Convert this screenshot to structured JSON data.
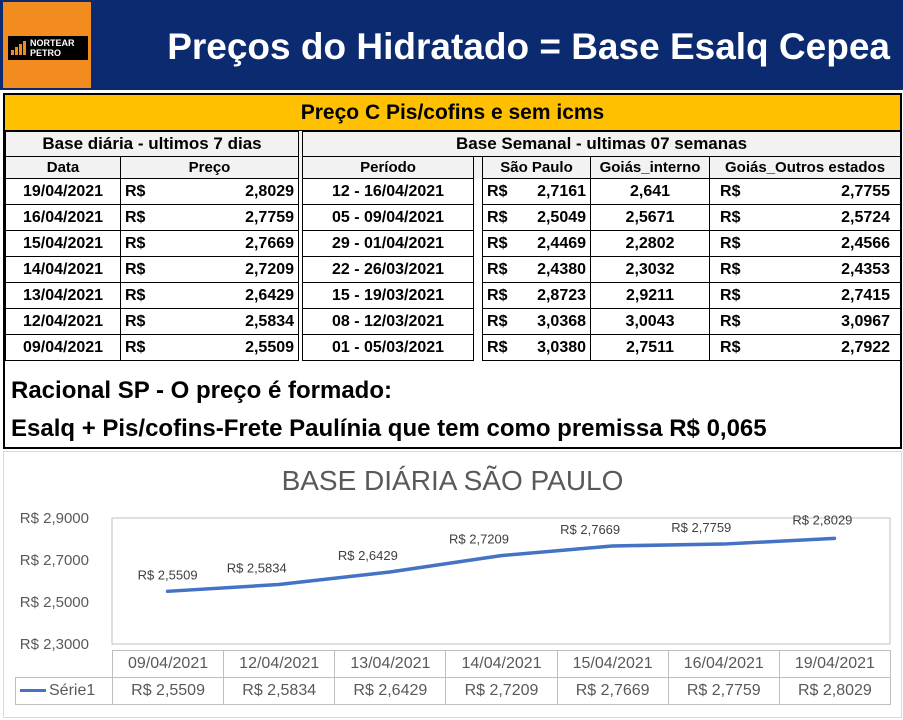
{
  "header": {
    "logo_text_line1": "NORTEAR",
    "logo_text_line2": "PETRO",
    "title": "Preços do Hidratado = Base Esalq Cepea"
  },
  "table": {
    "subtitle": "Preço C Pis/cofins e sem icms",
    "daily_header": "Base diária - ultimos 7 dias",
    "weekly_header": "Base Semanal - ultimas 07 semanas",
    "columns": {
      "data": "Data",
      "preco": "Preço",
      "periodo": "Período",
      "sao_paulo": "São Paulo",
      "goias_interno": "Goiás_interno",
      "goias_outros": "Goiás_Outros estados"
    },
    "currency": "R$",
    "rows": [
      {
        "data": "19/04/2021",
        "preco": "2,8029",
        "periodo": "12 - 16/04/2021",
        "sp": "2,7161",
        "gi": "2,641",
        "go": "2,7755"
      },
      {
        "data": "16/04/2021",
        "preco": "2,7759",
        "periodo": "05 - 09/04/2021",
        "sp": "2,5049",
        "gi": "2,5671",
        "go": "2,5724"
      },
      {
        "data": "15/04/2021",
        "preco": "2,7669",
        "periodo": "29 - 01/04/2021",
        "sp": "2,4469",
        "gi": "2,2802",
        "go": "2,4566"
      },
      {
        "data": "14/04/2021",
        "preco": "2,7209",
        "periodo": "22 - 26/03/2021",
        "sp": "2,4380",
        "gi": "2,3032",
        "go": "2,4353"
      },
      {
        "data": "13/04/2021",
        "preco": "2,6429",
        "periodo": "15 - 19/03/2021",
        "sp": "2,8723",
        "gi": "2,9211",
        "go": "2,7415"
      },
      {
        "data": "12/04/2021",
        "preco": "2,5834",
        "periodo": "08 - 12/03/2021",
        "sp": "3,0368",
        "gi": "3,0043",
        "go": "3,0967"
      },
      {
        "data": "09/04/2021",
        "preco": "2,5509",
        "periodo": "01 - 05/03/2021",
        "sp": "3,0380",
        "gi": "2,7511",
        "go": "2,7922"
      }
    ]
  },
  "rational": {
    "line1": "Racional SP - O preço é formado:",
    "line2": "Esalq + Pis/cofins-Frete Paulínia que tem como premissa R$ 0,065"
  },
  "colors": {
    "header_bg": "#0b2a6f",
    "logo_bg": "#f28c1e",
    "subtitle_bg": "#ffc000",
    "series": "#4472c4"
  },
  "chart_data": {
    "type": "line",
    "title": "BASE DIÁRIA SÃO PAULO",
    "categories": [
      "09/04/2021",
      "12/04/2021",
      "13/04/2021",
      "14/04/2021",
      "15/04/2021",
      "16/04/2021",
      "19/04/2021"
    ],
    "series": [
      {
        "name": "Série1",
        "values": [
          2.5509,
          2.5834,
          2.6429,
          2.7209,
          2.7669,
          2.7759,
          2.8029
        ],
        "labels": [
          "R$ 2,5509",
          "R$ 2,5834",
          "R$ 2,6429",
          "R$ 2,7209",
          "R$ 2,7669",
          "R$ 2,7759",
          "R$ 2,8029"
        ]
      }
    ],
    "yticks": [
      "R$ 2,3000",
      "R$ 2,5000",
      "R$ 2,7000",
      "R$ 2,9000"
    ],
    "ylim": [
      2.3,
      2.9
    ],
    "grid": false,
    "legend": "data-table"
  }
}
